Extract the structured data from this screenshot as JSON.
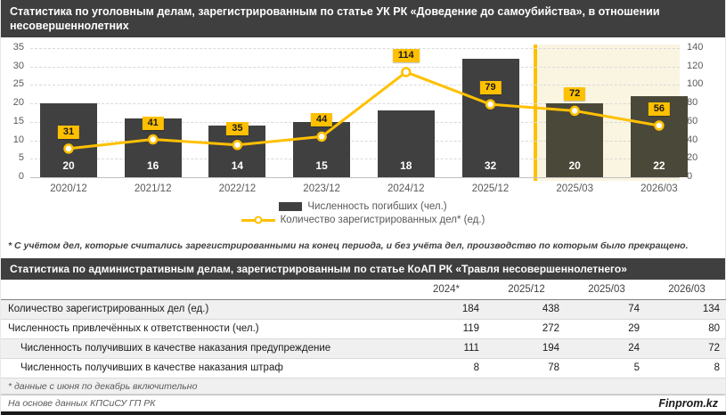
{
  "header1": {
    "title": "Статистика по уголовным делам, зарегистрированным по статье УК РК «Доведение до самоубийства», в отношении несовершеннолетних"
  },
  "chart_data": {
    "type": "bar",
    "subtype": "combo-bar-line",
    "categories": [
      "2020/12",
      "2021/12",
      "2022/12",
      "2023/12",
      "2024/12",
      "2025/12",
      "2025/03",
      "2026/03"
    ],
    "series": [
      {
        "name": "Численность погибших (чел.)",
        "type": "bar",
        "axis": "left",
        "values": [
          20,
          16,
          14,
          15,
          18,
          32,
          20,
          22
        ]
      },
      {
        "name": "Количество зарегистрированных дел* (ед.)",
        "type": "line",
        "axis": "right",
        "values": [
          31,
          41,
          35,
          44,
          114,
          79,
          72,
          56
        ]
      }
    ],
    "left_axis": {
      "min": 0,
      "max": 35,
      "step": 5
    },
    "right_axis": {
      "min": 0,
      "max": 140,
      "step": 20
    },
    "forecast_start_index": 6,
    "grid": true,
    "legend_position": "bottom"
  },
  "footnote1": "* С учётом дел, которые считались зарегистрированными на конец периода, и без учёта дел, производство по которым было прекращено.",
  "header2": {
    "title": "Статистика по административным делам, зарегистрированным по статье КоАП РК «Травля несовершеннолетнего»"
  },
  "table": {
    "columns": [
      "2024*",
      "2025/12",
      "2025/03",
      "2026/03"
    ],
    "rows": [
      {
        "label": "Количество зарегистрированных дел (ед.)",
        "indent": false,
        "values": [
          184,
          438,
          74,
          134
        ]
      },
      {
        "label": "Численность привлечённых к ответственности (чел.)",
        "indent": false,
        "values": [
          119,
          272,
          29,
          80
        ]
      },
      {
        "label": "Численность получивших в качестве наказания предупреждение",
        "indent": true,
        "values": [
          111,
          194,
          24,
          72
        ]
      },
      {
        "label": "Численность получивших в качестве наказания штраф",
        "indent": true,
        "values": [
          8,
          78,
          5,
          8
        ]
      }
    ],
    "footnote": "* данные с июня по декабрь включительно"
  },
  "footer": {
    "source": "На основе данных КПСиСУ ГП РК",
    "brand": "Finprom.kz"
  },
  "colors": {
    "accent": "#ffc000",
    "bar": "#404040",
    "bar_forecast": "#4a4839",
    "forecast_bg": "#f9f5e1",
    "header_bg": "#3f3f3f",
    "grid": "#d9d9d9",
    "axis_text": "#595959",
    "marker_fill": "#ffffff"
  }
}
